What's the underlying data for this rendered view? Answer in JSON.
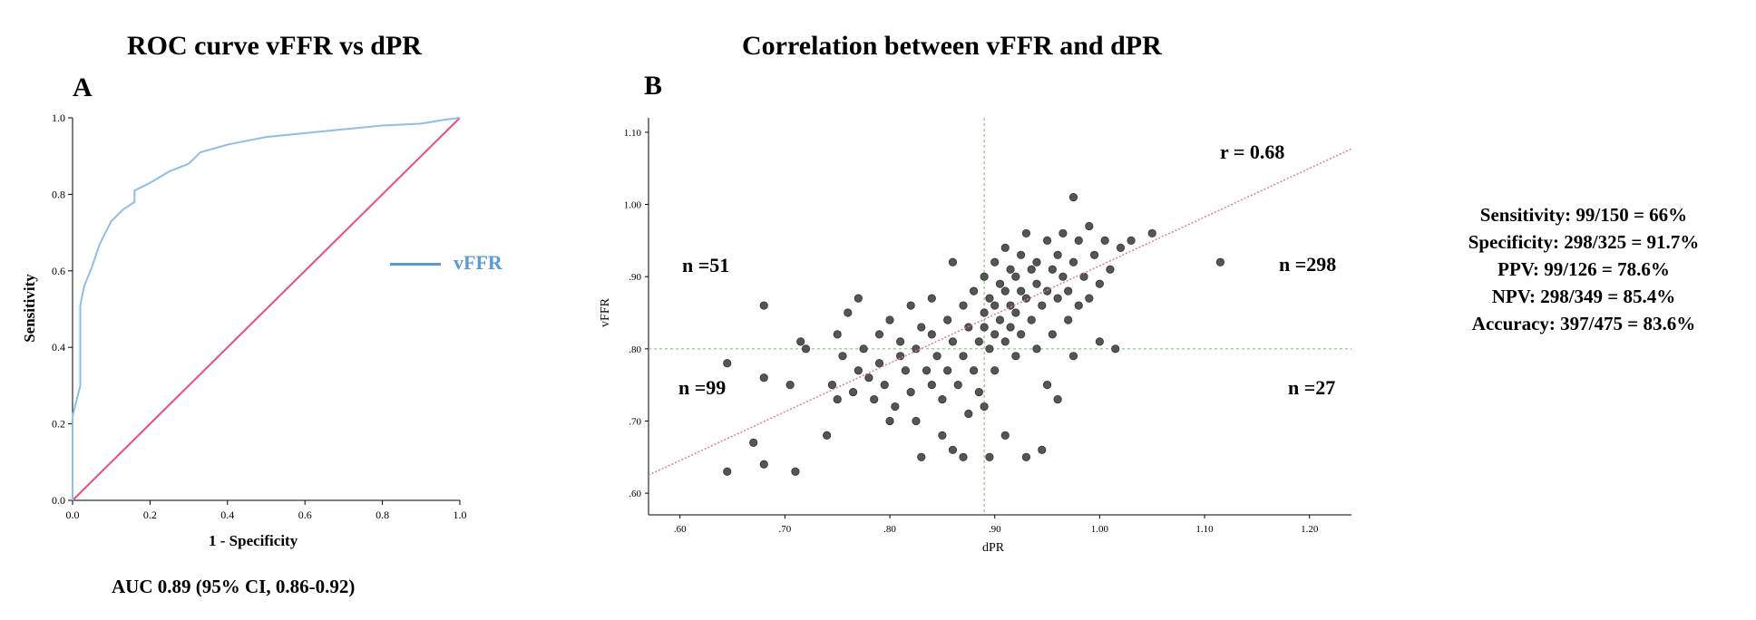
{
  "roc": {
    "title": "ROC curve vFFR vs dPR",
    "panel_label": "A",
    "auc_text": "AUC 0.89 (95% CI, 0.86-0.92)",
    "legend_label": "vFFR",
    "colors": {
      "curve": "#8fbde8",
      "reference": "#e8507a",
      "legend": "#5b9bd5"
    }
  },
  "scatter": {
    "title": "Correlation between vFFR and dPR",
    "panel_label": "B",
    "r_label": "r = 0.68",
    "quadrants": {
      "upper_left": "n =51",
      "upper_right": "n =298",
      "lower_left": "n =99",
      "lower_right": "n =27"
    },
    "colors": {
      "points": "#555555",
      "fit": "#e07a9a",
      "threshold": "#7fc97f"
    }
  },
  "stats": {
    "sensitivity": "Sensitivity: 99/150 = 66%",
    "specificity": "Specificity: 298/325 = 91.7%",
    "ppv": "PPV: 99/126 = 78.6%",
    "npv": "NPV: 298/349 = 85.4%",
    "accuracy": "Accuracy: 397/475 = 83.6%"
  },
  "chart_data": [
    {
      "type": "line",
      "title": "ROC curve vFFR vs dPR",
      "xlabel": "1 - Specificity",
      "ylabel": "Sensitivity",
      "xlim": [
        0,
        1
      ],
      "ylim": [
        0,
        1
      ],
      "x_ticks": [
        "0.0",
        "0.2",
        "0.4",
        "0.6",
        "0.8",
        "1.0"
      ],
      "y_ticks": [
        "0.0",
        "0.2",
        "0.4",
        "0.6",
        "0.8",
        "1.0"
      ],
      "series": [
        {
          "name": "vFFR",
          "x": [
            0.0,
            0.0,
            0.02,
            0.02,
            0.03,
            0.05,
            0.07,
            0.1,
            0.13,
            0.16,
            0.16,
            0.2,
            0.25,
            0.3,
            0.33,
            0.4,
            0.45,
            0.5,
            0.6,
            0.7,
            0.8,
            0.9,
            0.93,
            0.96,
            1.0
          ],
          "y": [
            0.0,
            0.22,
            0.3,
            0.51,
            0.56,
            0.61,
            0.67,
            0.73,
            0.76,
            0.78,
            0.81,
            0.83,
            0.86,
            0.88,
            0.91,
            0.93,
            0.94,
            0.95,
            0.96,
            0.97,
            0.98,
            0.985,
            0.99,
            0.995,
            1.0
          ]
        },
        {
          "name": "Reference",
          "x": [
            0,
            1
          ],
          "y": [
            0,
            1
          ]
        }
      ],
      "annotations": [
        "AUC 0.89 (95% CI, 0.86-0.92)"
      ]
    },
    {
      "type": "scatter",
      "title": "Correlation between vFFR and dPR",
      "xlabel": "dPR",
      "ylabel": "vFFR",
      "xlim": [
        0.57,
        1.24
      ],
      "ylim": [
        0.57,
        1.12
      ],
      "x_ticks": [
        ".60",
        ".70",
        ".80",
        ".90",
        "1.00",
        "1.10",
        "1.20"
      ],
      "y_ticks": [
        ".60",
        ".70",
        ".80",
        ".90",
        "1.00",
        "1.10"
      ],
      "x_threshold": 0.89,
      "y_threshold": 0.8,
      "fit_line": {
        "x": [
          0.57,
          1.24
        ],
        "y": [
          0.625,
          1.077
        ]
      },
      "r": 0.68,
      "points": [
        [
          0.645,
          0.63
        ],
        [
          0.645,
          0.78
        ],
        [
          0.67,
          0.67
        ],
        [
          0.68,
          0.64
        ],
        [
          0.68,
          0.76
        ],
        [
          0.68,
          0.86
        ],
        [
          0.705,
          0.75
        ],
        [
          0.71,
          0.63
        ],
        [
          0.715,
          0.81
        ],
        [
          0.72,
          0.8
        ],
        [
          0.74,
          0.68
        ],
        [
          0.745,
          0.75
        ],
        [
          0.75,
          0.82
        ],
        [
          0.75,
          0.73
        ],
        [
          0.755,
          0.79
        ],
        [
          0.76,
          0.85
        ],
        [
          0.765,
          0.74
        ],
        [
          0.77,
          0.77
        ],
        [
          0.77,
          0.87
        ],
        [
          0.775,
          0.8
        ],
        [
          0.78,
          0.76
        ],
        [
          0.785,
          0.73
        ],
        [
          0.79,
          0.78
        ],
        [
          0.79,
          0.82
        ],
        [
          0.795,
          0.75
        ],
        [
          0.8,
          0.7
        ],
        [
          0.8,
          0.84
        ],
        [
          0.805,
          0.72
        ],
        [
          0.81,
          0.79
        ],
        [
          0.81,
          0.81
        ],
        [
          0.815,
          0.77
        ],
        [
          0.82,
          0.74
        ],
        [
          0.82,
          0.86
        ],
        [
          0.825,
          0.8
        ],
        [
          0.825,
          0.7
        ],
        [
          0.83,
          0.83
        ],
        [
          0.83,
          0.65
        ],
        [
          0.835,
          0.77
        ],
        [
          0.84,
          0.75
        ],
        [
          0.84,
          0.82
        ],
        [
          0.84,
          0.87
        ],
        [
          0.845,
          0.79
        ],
        [
          0.85,
          0.73
        ],
        [
          0.85,
          0.68
        ],
        [
          0.855,
          0.84
        ],
        [
          0.855,
          0.77
        ],
        [
          0.86,
          0.81
        ],
        [
          0.86,
          0.92
        ],
        [
          0.86,
          0.66
        ],
        [
          0.865,
          0.75
        ],
        [
          0.87,
          0.79
        ],
        [
          0.87,
          0.86
        ],
        [
          0.87,
          0.65
        ],
        [
          0.875,
          0.71
        ],
        [
          0.875,
          0.83
        ],
        [
          0.88,
          0.88
        ],
        [
          0.88,
          0.77
        ],
        [
          0.885,
          0.81
        ],
        [
          0.885,
          0.74
        ],
        [
          0.89,
          0.9
        ],
        [
          0.89,
          0.85
        ],
        [
          0.89,
          0.83
        ],
        [
          0.89,
          0.72
        ],
        [
          0.895,
          0.87
        ],
        [
          0.895,
          0.8
        ],
        [
          0.895,
          0.65
        ],
        [
          0.9,
          0.92
        ],
        [
          0.9,
          0.86
        ],
        [
          0.9,
          0.82
        ],
        [
          0.9,
          0.77
        ],
        [
          0.905,
          0.89
        ],
        [
          0.905,
          0.84
        ],
        [
          0.91,
          0.94
        ],
        [
          0.91,
          0.88
        ],
        [
          0.91,
          0.81
        ],
        [
          0.91,
          0.68
        ],
        [
          0.915,
          0.91
        ],
        [
          0.915,
          0.86
        ],
        [
          0.915,
          0.83
        ],
        [
          0.92,
          0.9
        ],
        [
          0.92,
          0.85
        ],
        [
          0.92,
          0.79
        ],
        [
          0.925,
          0.93
        ],
        [
          0.925,
          0.88
        ],
        [
          0.925,
          0.82
        ],
        [
          0.93,
          0.96
        ],
        [
          0.93,
          0.87
        ],
        [
          0.93,
          0.65
        ],
        [
          0.935,
          0.91
        ],
        [
          0.935,
          0.84
        ],
        [
          0.94,
          0.89
        ],
        [
          0.94,
          0.92
        ],
        [
          0.94,
          0.8
        ],
        [
          0.945,
          0.86
        ],
        [
          0.945,
          0.66
        ],
        [
          0.95,
          0.95
        ],
        [
          0.95,
          0.88
        ],
        [
          0.95,
          0.75
        ],
        [
          0.955,
          0.91
        ],
        [
          0.955,
          0.82
        ],
        [
          0.96,
          0.93
        ],
        [
          0.96,
          0.87
        ],
        [
          0.96,
          0.73
        ],
        [
          0.965,
          0.9
        ],
        [
          0.965,
          0.96
        ],
        [
          0.97,
          0.88
        ],
        [
          0.97,
          0.84
        ],
        [
          0.975,
          1.01
        ],
        [
          0.975,
          0.92
        ],
        [
          0.975,
          0.79
        ],
        [
          0.98,
          0.95
        ],
        [
          0.98,
          0.86
        ],
        [
          0.985,
          0.9
        ],
        [
          0.99,
          0.97
        ],
        [
          0.99,
          0.87
        ],
        [
          0.995,
          0.93
        ],
        [
          1.0,
          0.89
        ],
        [
          1.0,
          0.81
        ],
        [
          1.005,
          0.95
        ],
        [
          1.01,
          0.91
        ],
        [
          1.015,
          0.8
        ],
        [
          1.02,
          0.94
        ],
        [
          1.03,
          0.95
        ],
        [
          1.05,
          0.96
        ],
        [
          1.115,
          0.92
        ]
      ]
    }
  ]
}
